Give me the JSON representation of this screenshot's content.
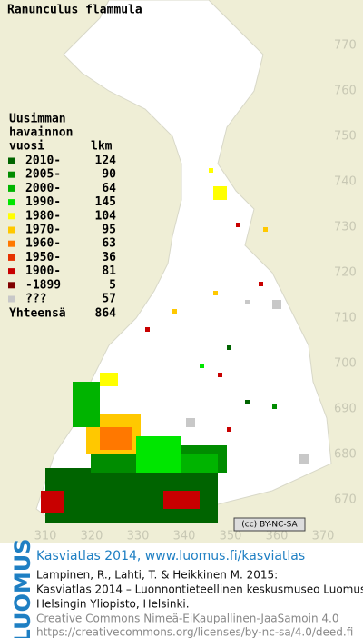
{
  "title": "Ranunculus flammula",
  "legend": {
    "heading": [
      "Uusimman",
      "havainnon"
    ],
    "columns": [
      "vuosi",
      "lkm"
    ],
    "rows": [
      {
        "label": "2010-",
        "count": 124,
        "color": "#006400"
      },
      {
        "label": "2005-",
        "count": 90,
        "color": "#008c00"
      },
      {
        "label": "2000-",
        "count": 64,
        "color": "#00b400"
      },
      {
        "label": "1990-",
        "count": 145,
        "color": "#00e600"
      },
      {
        "label": "1980-",
        "count": 104,
        "color": "#ffff00"
      },
      {
        "label": "1970-",
        "count": 95,
        "color": "#ffc800"
      },
      {
        "label": "1960-",
        "count": 63,
        "color": "#ff7800"
      },
      {
        "label": "1950-",
        "count": 36,
        "color": "#e63200"
      },
      {
        "label": "1900-",
        "count": 81,
        "color": "#c80000"
      },
      {
        "label": "-1899",
        "count": 5,
        "color": "#800000"
      },
      {
        "label": "???",
        "count": 57,
        "color": "#c8c8c8"
      }
    ],
    "total": {
      "label": "Yhteensä",
      "count": 864
    }
  },
  "y_axis_labels": [
    770,
    760,
    750,
    740,
    730,
    720,
    710,
    700,
    690,
    680,
    670
  ],
  "x_axis_labels": [
    310,
    320,
    330,
    340,
    350,
    360,
    370
  ],
  "license_badge": "(cc) BY-NC-SA",
  "logo": "LUOMUS",
  "footer": {
    "link": "Kasviatlas 2014, www.luomus.fi/kasviatlas",
    "citation": [
      "Lampinen, R., Lahti, T. & Heikkinen M. 2015:",
      "Kasviatlas 2014 – Luonnontieteellinen keskusmuseo Luomus,",
      "Helsingin Yliopisto, Helsinki."
    ],
    "license": [
      "Creative Commons Nimeä-EiKaupallinen-JaaSamoin 4.0",
      "https://creativecommons.org/licenses/by-nc-sa/4.0/deed.fi"
    ]
  }
}
